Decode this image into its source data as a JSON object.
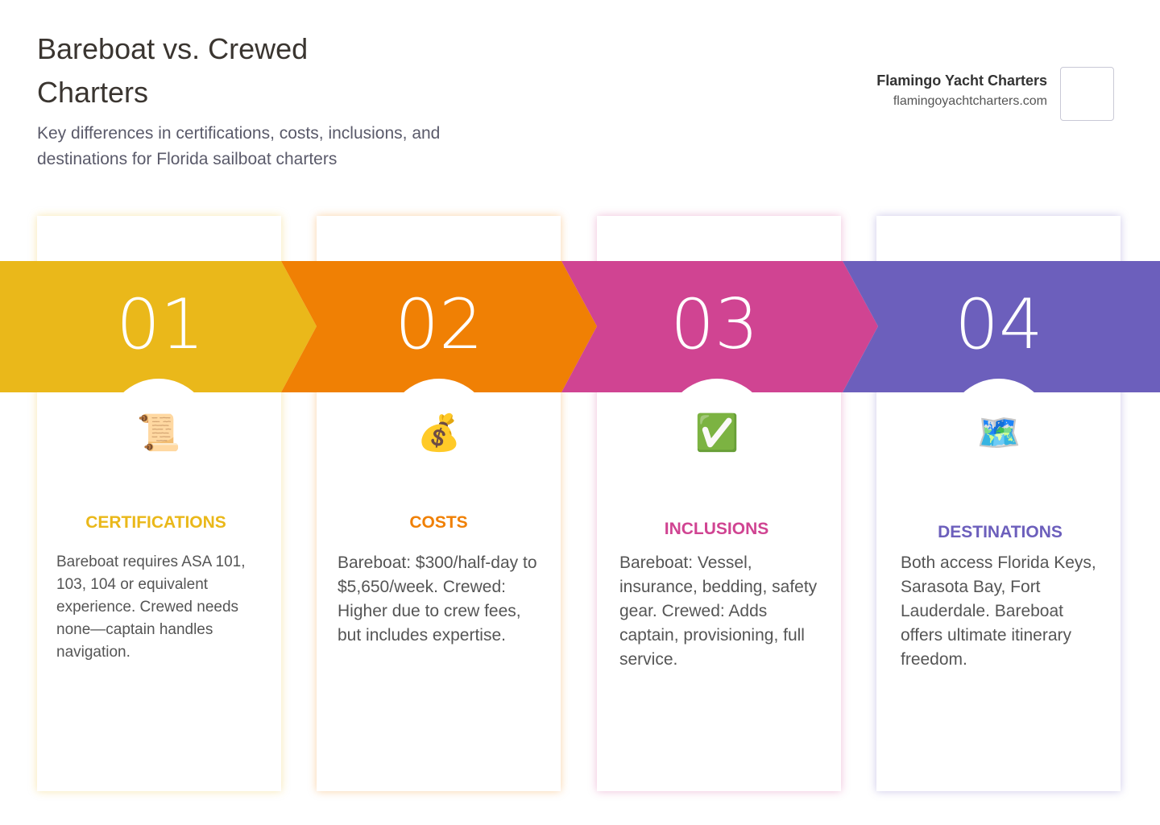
{
  "header": {
    "title": "Bareboat vs. Crewed Charters",
    "subtitle": "Key differences in certifications, costs, inclusions, and destinations for Florida sailboat charters"
  },
  "brand": {
    "name": "Flamingo Yacht Charters",
    "url": "flamingoyachtcharters.com"
  },
  "steps": [
    {
      "number": "01",
      "icon": "📜",
      "heading": "CERTIFICATIONS",
      "text": "Bareboat requires ASA 101, 103, 104 or equivalent experience. Crewed needs none—captain handles navigation."
    },
    {
      "number": "02",
      "icon": "💰",
      "heading": "COSTS",
      "text": "Bareboat: $300/half-day to $5,650/week. Crewed: Higher due to crew fees, but includes expertise."
    },
    {
      "number": "03",
      "icon": "✅",
      "heading": "INCLUSIONS",
      "text": "Bareboat: Vessel, insurance, bedding, safety gear. Crewed: Adds captain, provisioning, full service."
    },
    {
      "number": "04",
      "icon": "🗺️",
      "heading": "DESTINATIONS",
      "text": "Both access Florida Keys, Sarasota Bay, Fort Lauderdale. Bareboat offers ultimate itinerary freedom."
    }
  ]
}
